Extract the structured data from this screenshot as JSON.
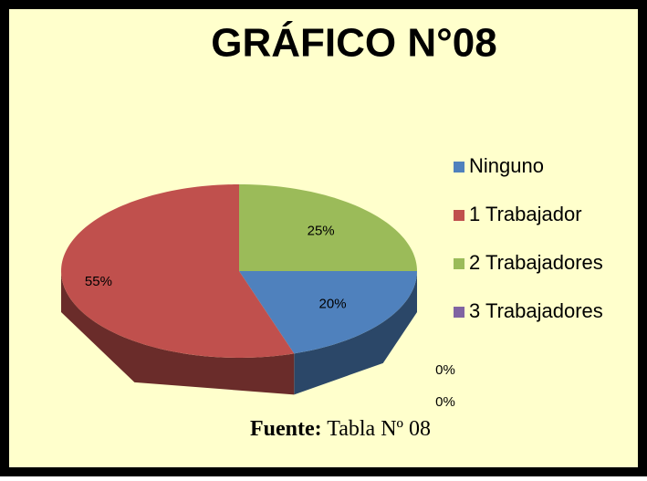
{
  "chart_data": {
    "type": "pie3d",
    "title": "GRÁFICO N°08",
    "categories": [
      "Ninguno",
      "1 Trabajador",
      "2 Trabajadores",
      "3 Trabajadores",
      null
    ],
    "values": [
      20,
      55,
      25,
      0,
      0
    ],
    "value_labels": [
      "20%",
      "55%",
      "25%",
      "0%",
      "0%"
    ],
    "colors": [
      "#4f81bd",
      "#c0504d",
      "#9bbb59",
      "#8064a2",
      "#f79646"
    ],
    "legend": "right",
    "source_label": "Fuente:",
    "source": "Tabla Nº 08"
  }
}
